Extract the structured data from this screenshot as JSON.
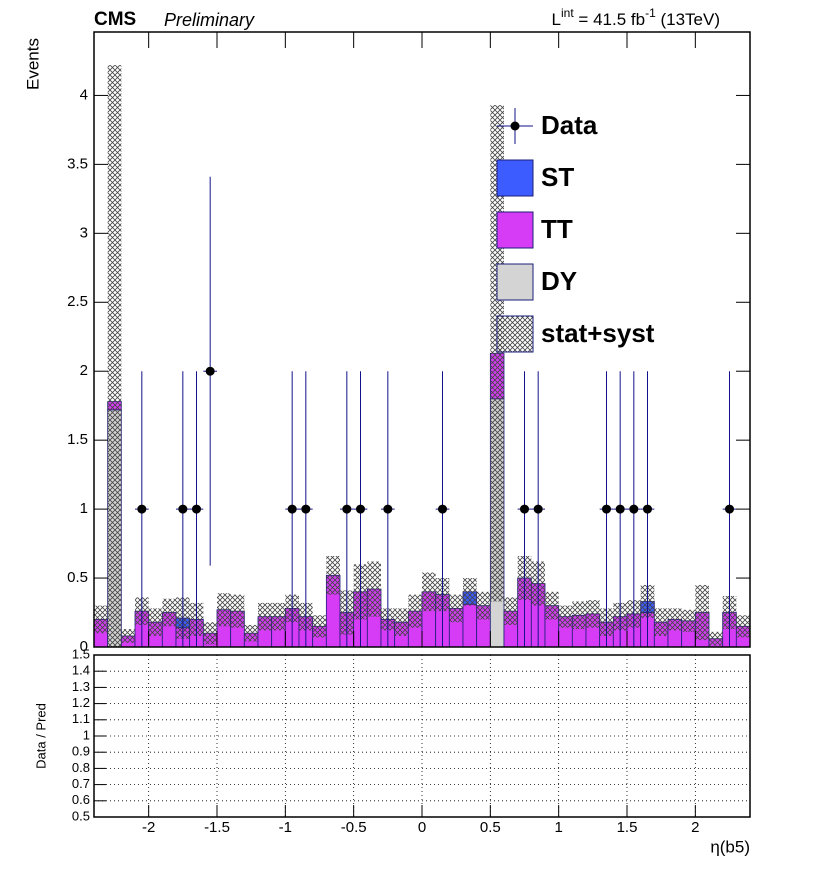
{
  "chart_data": [
    {
      "type": "stacked-histogram",
      "experiment": "CMS",
      "status": "Preliminary",
      "lumi": [
        "L",
        "int",
        " = 41.5 fb",
        "-1",
        " (13TeV)"
      ],
      "ylabel": "Events",
      "bins": [
        -2.4,
        -2.3,
        -2.2,
        -2.1,
        -2.0,
        -1.9,
        -1.8,
        -1.7,
        -1.6,
        -1.5,
        -1.4,
        -1.3,
        -1.2,
        -1.1,
        -1.0,
        -0.9,
        -0.8,
        -0.7,
        -0.6,
        -0.5,
        -0.4,
        -0.3,
        -0.2,
        -0.1,
        0.0,
        0.1,
        0.2,
        0.3,
        0.4,
        0.5,
        0.6,
        0.7,
        0.8,
        0.9,
        1.0,
        1.1,
        1.2,
        1.3,
        1.4,
        1.5,
        1.6,
        1.7,
        1.8,
        1.9,
        2.0,
        2.1,
        2.2,
        2.3,
        2.4
      ],
      "xlim": [
        -2.4,
        2.4
      ],
      "ylim": [
        0,
        4.46
      ],
      "yticks": [
        0,
        0.5,
        1,
        1.5,
        2,
        2.5,
        3,
        3.5,
        4
      ],
      "data": {
        "name": "Data",
        "color": "#000000",
        "values": [
          null,
          null,
          null,
          1,
          null,
          null,
          1,
          1,
          2,
          null,
          null,
          null,
          null,
          null,
          1,
          1,
          null,
          null,
          1,
          1,
          null,
          1,
          null,
          null,
          null,
          1,
          null,
          null,
          null,
          null,
          null,
          1,
          1,
          null,
          null,
          null,
          null,
          1,
          1,
          1,
          1,
          null,
          null,
          null,
          null,
          null,
          1,
          null
        ],
        "errors": [
          null,
          null,
          null,
          1,
          null,
          null,
          1,
          1,
          1.41,
          null,
          null,
          null,
          null,
          null,
          1,
          1,
          null,
          null,
          1,
          1,
          null,
          1,
          null,
          null,
          null,
          1,
          null,
          null,
          null,
          null,
          null,
          1,
          1,
          null,
          null,
          null,
          null,
          1,
          1,
          1,
          1,
          null,
          null,
          null,
          null,
          null,
          1,
          null
        ]
      },
      "series": [
        {
          "name": "ST",
          "color": "#3c5cff",
          "values": [
            0,
            0,
            0,
            0,
            0,
            0,
            0.07,
            0,
            0,
            0,
            0,
            0,
            0,
            0,
            0,
            0,
            0,
            0,
            0,
            0,
            0,
            0,
            0,
            0,
            0,
            0,
            0,
            0.09,
            0,
            0,
            0,
            0,
            0,
            0,
            0,
            0,
            0,
            0,
            0,
            0,
            0.08,
            0,
            0,
            0,
            0,
            0,
            0,
            0
          ]
        },
        {
          "name": "TT",
          "color": "#d63cf6",
          "values": [
            0.2,
            0.06,
            0.08,
            0.26,
            0.18,
            0.25,
            0.14,
            0.2,
            0.1,
            0.27,
            0.26,
            0.1,
            0.22,
            0.22,
            0.28,
            0.22,
            0.15,
            0.52,
            0.25,
            0.4,
            0.42,
            0.2,
            0.18,
            0.26,
            0.4,
            0.38,
            0.28,
            0.31,
            0.3,
            0.33,
            0.26,
            0.5,
            0.46,
            0.3,
            0.22,
            0.23,
            0.24,
            0.18,
            0.22,
            0.24,
            0.25,
            0.18,
            0.2,
            0.19,
            0.25,
            0.06,
            0.25,
            0.15
          ]
        },
        {
          "name": "DY",
          "color": "#d4d4d4",
          "values": [
            0,
            1.72,
            0,
            0,
            0,
            0,
            0,
            0,
            0,
            0,
            0,
            0,
            0,
            0,
            0,
            0,
            0,
            0,
            0,
            0,
            0,
            0,
            0,
            0,
            0,
            0,
            0,
            0,
            0,
            1.8,
            0,
            0,
            0,
            0,
            0,
            0,
            0,
            0,
            0,
            0,
            0,
            0,
            0,
            0,
            0,
            0,
            0,
            0
          ]
        }
      ],
      "uncertainty": {
        "name": "stat+syst",
        "values": [
          0.1,
          2.44,
          0.05,
          0.1,
          0.1,
          0.1,
          0.15,
          0.12,
          0.08,
          0.12,
          0.12,
          0.06,
          0.1,
          0.1,
          0.1,
          0.1,
          0.08,
          0.14,
          0.16,
          0.2,
          0.2,
          0.08,
          0.1,
          0.12,
          0.14,
          0.12,
          0.1,
          0.1,
          0.1,
          1.8,
          0.1,
          0.16,
          0.16,
          0.1,
          0.08,
          0.1,
          0.1,
          0.1,
          0.1,
          0.1,
          0.12,
          0.1,
          0.08,
          0.08,
          0.2,
          0.05,
          0.12,
          0.08
        ]
      }
    },
    {
      "type": "ratio",
      "ylabel": "Data / Pred",
      "xlabel": "η(b5)",
      "xlim": [
        -2.4,
        2.4
      ],
      "xticks": [
        -2,
        -1.5,
        -1,
        -0.5,
        0,
        0.5,
        1,
        1.5,
        2
      ],
      "ylim": [
        0.5,
        1.5
      ],
      "yticks": [
        0.5,
        0.6,
        0.7,
        0.8,
        0.9,
        1,
        1.1,
        1.2,
        1.3,
        1.4,
        1.5
      ],
      "grid": true
    }
  ]
}
